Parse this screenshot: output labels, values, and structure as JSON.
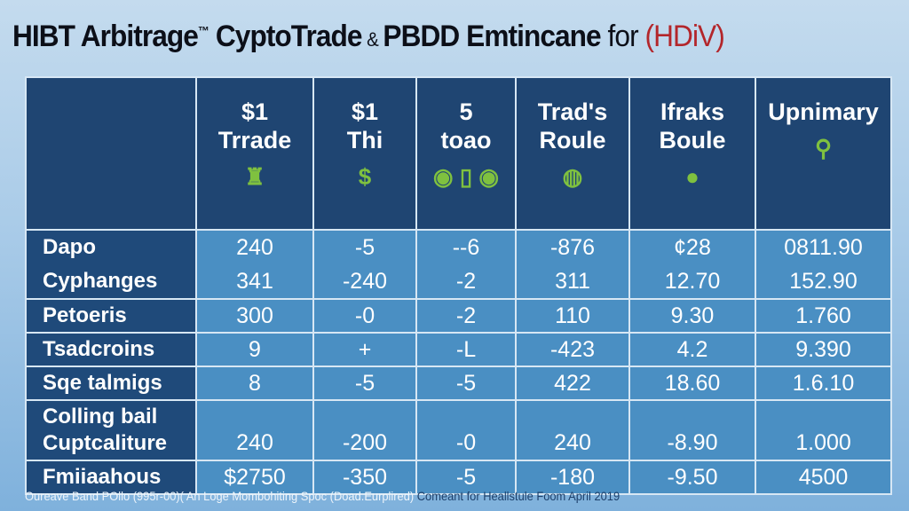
{
  "title": {
    "main": "HIBT Arbitrage",
    "tm": "™",
    "part2": "CyptoTrade",
    "amp": "&",
    "part3": "PBDD Emtincane",
    "for": "for",
    "logo": "(HDiV)"
  },
  "colors": {
    "header_bg": "#1f4572",
    "label_bg": "#1f4a7a",
    "cell_bg": "#4a8fc3",
    "icon": "#7fc13f",
    "logo": "#b3262b"
  },
  "headers": [
    {
      "line1": "",
      "line2": "",
      "icon": ""
    },
    {
      "line1": "$1",
      "line2": "Trrade",
      "icon": "building-icon",
      "glyph": "♜"
    },
    {
      "line1": "$1",
      "line2": "Thi",
      "icon": "dollar-coin-icon",
      "glyph": "$"
    },
    {
      "line1": "5",
      "line2": "toao",
      "icon": "globe-icons",
      "glyph": "◉ ▯ ◉"
    },
    {
      "line1": "Trad's",
      "line2": "Roule",
      "icon": "globe-icon",
      "glyph": "◍"
    },
    {
      "line1": "Ifraks",
      "line2": "Boule",
      "icon": "coin-icon",
      "glyph": "●"
    },
    {
      "line1": "Upnimary",
      "line2": "",
      "icon": "key-icon",
      "glyph": "⚲"
    }
  ],
  "rows": [
    {
      "label": "Dapo",
      "values": [
        "240",
        "-5",
        "--6",
        "-876",
        "¢28",
        "0811.90"
      ]
    },
    {
      "label": "Cyphanges",
      "values": [
        "341",
        "-240",
        "-2",
        "311",
        "12.70",
        "152.90"
      ]
    },
    {
      "label": "Petoeris",
      "values": [
        "300",
        "-0",
        "-2",
        "110",
        "9.30",
        "1.760"
      ]
    },
    {
      "label": "Tsadcroins",
      "values": [
        "9",
        "+",
        "-L",
        "-423",
        "4.2",
        "9.390"
      ]
    },
    {
      "label": "Sqe talmigs",
      "values": [
        "8",
        "-5",
        "-5",
        "422",
        "18.60",
        "1.6.10"
      ]
    },
    {
      "label": "Colling bail Cuptcaliture",
      "values": [
        "240",
        "-200",
        "-0",
        "240",
        "-8.90",
        "1.000"
      ]
    },
    {
      "label": "Fmiiaahous",
      "values": [
        "$2750",
        "-350",
        "-5",
        "-180",
        "-9.50",
        "4500"
      ]
    }
  ],
  "footer": {
    "source": "Oureave Band POllo (995r-00)( An Loge Mombohiting Spoc (Doad.Eurplired)",
    "note": "Comeant for Heallstule Foom April 2019"
  }
}
